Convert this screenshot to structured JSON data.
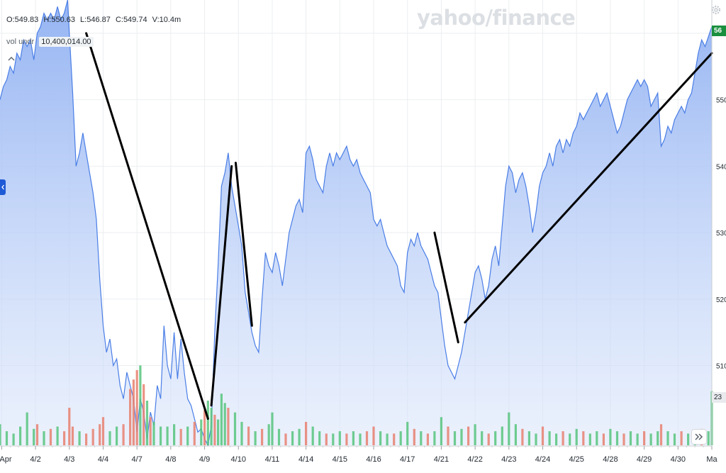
{
  "header": {
    "open": "O:549.83",
    "high": "H:550.63",
    "low": "L:546.87",
    "close": "C:549.74",
    "volume": "V:10.4m",
    "vol_label": "vol undr",
    "vol_value": "10,400,014.00",
    "logo": "yahoo/finance"
  },
  "tags": {
    "price": "56",
    "volume": "23"
  },
  "colors": {
    "area_fill": "#a9c3f5",
    "line": "#4a7ee6",
    "vol_up": "#57c47c",
    "vol_down": "#e8806e",
    "annotation": "#000000",
    "price_tag_bg": "#1a8f3e"
  },
  "icons": [
    "collapse-chevron-up-icon",
    "gear-icon",
    "side-handle-chevron-left-icon",
    "fast-forward-icon"
  ],
  "chart_data": {
    "type": "area",
    "y_ticks": [
      {
        "value": 510,
        "label": "510"
      },
      {
        "value": 520,
        "label": "520"
      },
      {
        "value": 530,
        "label": "530"
      },
      {
        "value": 540,
        "label": "540"
      },
      {
        "value": 550,
        "label": "550"
      },
      {
        "value": 560,
        "label": "560"
      }
    ],
    "ylim": [
      498,
      565
    ],
    "x_ticks": [
      {
        "value": 0,
        "label": "Apr"
      },
      {
        "value": 1,
        "label": "4/2"
      },
      {
        "value": 2,
        "label": "4/3"
      },
      {
        "value": 3,
        "label": "4/4"
      },
      {
        "value": 4,
        "label": "4/7"
      },
      {
        "value": 5,
        "label": "4/8"
      },
      {
        "value": 6,
        "label": "4/9"
      },
      {
        "value": 7,
        "label": "4/10"
      },
      {
        "value": 8,
        "label": "4/11"
      },
      {
        "value": 9,
        "label": "4/14"
      },
      {
        "value": 10,
        "label": "4/15"
      },
      {
        "value": 11,
        "label": "4/16"
      },
      {
        "value": 12,
        "label": "4/17"
      },
      {
        "value": 13,
        "label": "4/21"
      },
      {
        "value": 14,
        "label": "4/22"
      },
      {
        "value": 15,
        "label": "4/23"
      },
      {
        "value": 16,
        "label": "4/24"
      },
      {
        "value": 17,
        "label": "4/25"
      },
      {
        "value": 18,
        "label": "4/28"
      },
      {
        "value": 19,
        "label": "4/29"
      },
      {
        "value": 20,
        "label": "4/30"
      },
      {
        "value": 21,
        "label": "Ma"
      }
    ],
    "xlim": [
      -0.05,
      21
    ],
    "price_series": [
      [
        -0.05,
        550
      ],
      [
        0.05,
        552
      ],
      [
        0.15,
        553
      ],
      [
        0.25,
        555
      ],
      [
        0.35,
        554
      ],
      [
        0.45,
        557
      ],
      [
        0.55,
        556
      ],
      [
        0.65,
        559
      ],
      [
        0.75,
        558
      ],
      [
        0.85,
        559
      ],
      [
        0.95,
        556
      ],
      [
        1.05,
        560
      ],
      [
        1.15,
        561
      ],
      [
        1.25,
        563
      ],
      [
        1.35,
        562
      ],
      [
        1.45,
        563
      ],
      [
        1.55,
        562
      ],
      [
        1.65,
        564
      ],
      [
        1.75,
        562
      ],
      [
        1.85,
        563
      ],
      [
        1.95,
        565
      ],
      [
        2.0,
        560
      ],
      [
        2.1,
        551
      ],
      [
        2.2,
        540
      ],
      [
        2.3,
        542
      ],
      [
        2.4,
        545
      ],
      [
        2.5,
        542
      ],
      [
        2.6,
        539
      ],
      [
        2.7,
        536
      ],
      [
        2.8,
        532
      ],
      [
        2.9,
        523
      ],
      [
        3.0,
        516
      ],
      [
        3.1,
        512
      ],
      [
        3.2,
        514
      ],
      [
        3.3,
        510
      ],
      [
        3.4,
        511
      ],
      [
        3.5,
        507
      ],
      [
        3.6,
        505
      ],
      [
        3.7,
        509
      ],
      [
        3.8,
        507
      ],
      [
        3.9,
        505
      ],
      [
        4.0,
        500
      ],
      [
        4.1,
        505
      ],
      [
        4.2,
        503
      ],
      [
        4.3,
        499
      ],
      [
        4.4,
        503
      ],
      [
        4.5,
        501
      ],
      [
        4.6,
        507
      ],
      [
        4.7,
        505
      ],
      [
        4.8,
        516
      ],
      [
        4.9,
        510
      ],
      [
        5.0,
        508
      ],
      [
        5.1,
        515
      ],
      [
        5.2,
        508
      ],
      [
        5.3,
        514
      ],
      [
        5.4,
        509
      ],
      [
        5.5,
        505
      ],
      [
        5.6,
        504
      ],
      [
        5.7,
        502
      ],
      [
        5.8,
        500
      ],
      [
        5.9,
        500.5
      ],
      [
        6.0,
        499
      ],
      [
        6.1,
        498
      ],
      [
        6.2,
        501
      ],
      [
        6.3,
        515
      ],
      [
        6.4,
        525
      ],
      [
        6.5,
        537
      ],
      [
        6.6,
        539
      ],
      [
        6.7,
        542
      ],
      [
        6.8,
        537
      ],
      [
        6.9,
        534
      ],
      [
        7.0,
        531
      ],
      [
        7.1,
        528
      ],
      [
        7.2,
        521
      ],
      [
        7.3,
        518
      ],
      [
        7.4,
        515
      ],
      [
        7.5,
        513
      ],
      [
        7.6,
        512
      ],
      [
        7.7,
        520
      ],
      [
        7.8,
        527
      ],
      [
        7.9,
        525
      ],
      [
        8.0,
        524
      ],
      [
        8.1,
        527
      ],
      [
        8.2,
        525
      ],
      [
        8.3,
        522
      ],
      [
        8.4,
        526
      ],
      [
        8.5,
        530
      ],
      [
        8.6,
        532
      ],
      [
        8.7,
        534
      ],
      [
        8.8,
        535
      ],
      [
        8.9,
        533
      ],
      [
        9.0,
        542
      ],
      [
        9.1,
        543
      ],
      [
        9.2,
        541
      ],
      [
        9.3,
        538
      ],
      [
        9.4,
        537
      ],
      [
        9.5,
        536
      ],
      [
        9.6,
        540
      ],
      [
        9.7,
        542
      ],
      [
        9.8,
        540
      ],
      [
        9.9,
        542
      ],
      [
        10.0,
        541
      ],
      [
        10.1,
        542
      ],
      [
        10.2,
        543
      ],
      [
        10.3,
        541
      ],
      [
        10.4,
        540
      ],
      [
        10.5,
        541
      ],
      [
        10.6,
        539
      ],
      [
        10.7,
        538
      ],
      [
        10.8,
        537
      ],
      [
        10.9,
        536
      ],
      [
        11.0,
        532
      ],
      [
        11.1,
        531
      ],
      [
        11.2,
        532
      ],
      [
        11.3,
        530
      ],
      [
        11.4,
        528
      ],
      [
        11.5,
        527
      ],
      [
        11.6,
        526
      ],
      [
        11.7,
        525
      ],
      [
        11.8,
        522
      ],
      [
        11.9,
        521
      ],
      [
        12.0,
        527
      ],
      [
        12.1,
        529
      ],
      [
        12.2,
        528
      ],
      [
        12.3,
        530
      ],
      [
        12.4,
        528
      ],
      [
        12.5,
        527
      ],
      [
        12.6,
        526
      ],
      [
        12.7,
        524
      ],
      [
        12.8,
        522
      ],
      [
        12.9,
        521
      ],
      [
        13.0,
        517
      ],
      [
        13.1,
        513
      ],
      [
        13.2,
        510
      ],
      [
        13.3,
        509
      ],
      [
        13.4,
        508
      ],
      [
        13.5,
        510
      ],
      [
        13.6,
        512
      ],
      [
        13.7,
        515
      ],
      [
        13.8,
        518
      ],
      [
        13.9,
        521
      ],
      [
        14.0,
        524
      ],
      [
        14.1,
        525
      ],
      [
        14.2,
        523
      ],
      [
        14.3,
        520
      ],
      [
        14.4,
        522
      ],
      [
        14.5,
        526
      ],
      [
        14.6,
        528
      ],
      [
        14.7,
        525
      ],
      [
        14.8,
        531
      ],
      [
        14.9,
        537
      ],
      [
        15.0,
        540
      ],
      [
        15.1,
        539
      ],
      [
        15.2,
        536
      ],
      [
        15.3,
        538
      ],
      [
        15.4,
        539
      ],
      [
        15.5,
        537
      ],
      [
        15.6,
        534
      ],
      [
        15.7,
        530
      ],
      [
        15.8,
        533
      ],
      [
        15.9,
        537
      ],
      [
        16.0,
        539
      ],
      [
        16.1,
        540
      ],
      [
        16.2,
        542
      ],
      [
        16.3,
        540
      ],
      [
        16.4,
        543
      ],
      [
        16.5,
        544
      ],
      [
        16.6,
        542
      ],
      [
        16.7,
        544
      ],
      [
        16.8,
        543
      ],
      [
        16.9,
        545
      ],
      [
        17.0,
        546
      ],
      [
        17.1,
        548
      ],
      [
        17.2,
        547
      ],
      [
        17.3,
        548
      ],
      [
        17.4,
        549
      ],
      [
        17.5,
        550
      ],
      [
        17.6,
        551
      ],
      [
        17.7,
        549
      ],
      [
        17.8,
        550
      ],
      [
        17.9,
        551
      ],
      [
        18.0,
        549
      ],
      [
        18.1,
        547
      ],
      [
        18.2,
        545
      ],
      [
        18.3,
        546
      ],
      [
        18.4,
        548
      ],
      [
        18.5,
        550
      ],
      [
        18.6,
        551
      ],
      [
        18.7,
        552
      ],
      [
        18.8,
        553
      ],
      [
        18.9,
        552
      ],
      [
        19.0,
        553
      ],
      [
        19.1,
        552
      ],
      [
        19.2,
        549
      ],
      [
        19.3,
        550
      ],
      [
        19.4,
        551
      ],
      [
        19.5,
        543
      ],
      [
        19.6,
        544
      ],
      [
        19.7,
        546
      ],
      [
        19.8,
        545
      ],
      [
        19.9,
        547
      ],
      [
        20.0,
        548
      ],
      [
        20.1,
        549
      ],
      [
        20.2,
        548
      ],
      [
        20.3,
        550
      ],
      [
        20.4,
        551
      ],
      [
        20.5,
        554
      ],
      [
        20.6,
        557
      ],
      [
        20.7,
        559
      ],
      [
        20.8,
        558
      ],
      [
        21.0,
        561
      ]
    ],
    "volume_axis_max": 35,
    "volume_series": [
      [
        -0.05,
        9,
        "up"
      ],
      [
        0.15,
        6,
        "up"
      ],
      [
        0.35,
        5,
        "up"
      ],
      [
        0.55,
        8,
        "up"
      ],
      [
        0.75,
        14,
        "up"
      ],
      [
        0.95,
        7,
        "up"
      ],
      [
        1.05,
        9,
        "down"
      ],
      [
        1.25,
        6,
        "up"
      ],
      [
        1.45,
        7,
        "down"
      ],
      [
        1.65,
        8,
        "up"
      ],
      [
        1.85,
        6,
        "down"
      ],
      [
        2.0,
        16,
        "down"
      ],
      [
        2.1,
        8,
        "down"
      ],
      [
        2.3,
        6,
        "up"
      ],
      [
        2.5,
        5,
        "down"
      ],
      [
        2.7,
        7,
        "down"
      ],
      [
        2.9,
        9,
        "down"
      ],
      [
        3.0,
        12,
        "down"
      ],
      [
        3.2,
        6,
        "up"
      ],
      [
        3.4,
        8,
        "up"
      ],
      [
        3.6,
        9,
        "down"
      ],
      [
        3.8,
        24,
        "down"
      ],
      [
        3.9,
        28,
        "down"
      ],
      [
        4.0,
        32,
        "down"
      ],
      [
        4.1,
        34,
        "up"
      ],
      [
        4.2,
        26,
        "down"
      ],
      [
        4.3,
        19,
        "up"
      ],
      [
        4.4,
        12,
        "down"
      ],
      [
        4.5,
        10,
        "up"
      ],
      [
        4.7,
        8,
        "up"
      ],
      [
        4.9,
        8,
        "up"
      ],
      [
        5.1,
        9,
        "up"
      ],
      [
        5.3,
        7,
        "down"
      ],
      [
        5.5,
        8,
        "up"
      ],
      [
        5.7,
        10,
        "down"
      ],
      [
        5.9,
        11,
        "up"
      ],
      [
        6.0,
        15,
        "down"
      ],
      [
        6.1,
        19,
        "up"
      ],
      [
        6.2,
        16,
        "up"
      ],
      [
        6.3,
        13,
        "down"
      ],
      [
        6.4,
        11,
        "up"
      ],
      [
        6.5,
        22,
        "up"
      ],
      [
        6.6,
        18,
        "up"
      ],
      [
        6.7,
        16,
        "down"
      ],
      [
        6.9,
        14,
        "up"
      ],
      [
        7.1,
        10,
        "up"
      ],
      [
        7.3,
        8,
        "down"
      ],
      [
        7.5,
        6,
        "up"
      ],
      [
        7.7,
        7,
        "down"
      ],
      [
        7.9,
        9,
        "up"
      ],
      [
        8.0,
        14,
        "up"
      ],
      [
        8.2,
        7,
        "up"
      ],
      [
        8.4,
        5,
        "down"
      ],
      [
        8.6,
        6,
        "up"
      ],
      [
        8.8,
        7,
        "up"
      ],
      [
        9.0,
        10,
        "down"
      ],
      [
        9.2,
        8,
        "up"
      ],
      [
        9.4,
        6,
        "up"
      ],
      [
        9.6,
        5,
        "down"
      ],
      [
        9.8,
        5,
        "up"
      ],
      [
        10.0,
        6,
        "up"
      ],
      [
        10.2,
        5,
        "down"
      ],
      [
        10.4,
        6,
        "up"
      ],
      [
        10.6,
        5,
        "up"
      ],
      [
        10.8,
        6,
        "down"
      ],
      [
        11.0,
        8,
        "down"
      ],
      [
        11.2,
        6,
        "up"
      ],
      [
        11.4,
        5,
        "up"
      ],
      [
        11.6,
        5,
        "down"
      ],
      [
        11.8,
        6,
        "up"
      ],
      [
        12.0,
        10,
        "up"
      ],
      [
        12.2,
        7,
        "down"
      ],
      [
        12.4,
        6,
        "up"
      ],
      [
        12.6,
        5,
        "down"
      ],
      [
        12.8,
        6,
        "up"
      ],
      [
        13.0,
        12,
        "up"
      ],
      [
        13.2,
        8,
        "down"
      ],
      [
        13.4,
        6,
        "up"
      ],
      [
        13.6,
        7,
        "up"
      ],
      [
        13.8,
        8,
        "down"
      ],
      [
        14.0,
        9,
        "up"
      ],
      [
        14.2,
        6,
        "up"
      ],
      [
        14.4,
        5,
        "down"
      ],
      [
        14.6,
        6,
        "up"
      ],
      [
        14.8,
        8,
        "up"
      ],
      [
        15.0,
        14,
        "up"
      ],
      [
        15.2,
        9,
        "up"
      ],
      [
        15.4,
        7,
        "down"
      ],
      [
        15.6,
        6,
        "up"
      ],
      [
        15.8,
        5,
        "up"
      ],
      [
        16.0,
        8,
        "down"
      ],
      [
        16.2,
        6,
        "up"
      ],
      [
        16.4,
        5,
        "up"
      ],
      [
        16.6,
        6,
        "down"
      ],
      [
        16.8,
        5,
        "up"
      ],
      [
        17.0,
        7,
        "up"
      ],
      [
        17.2,
        6,
        "down"
      ],
      [
        17.4,
        5,
        "up"
      ],
      [
        17.6,
        6,
        "up"
      ],
      [
        17.8,
        5,
        "down"
      ],
      [
        18.0,
        7,
        "up"
      ],
      [
        18.2,
        6,
        "up"
      ],
      [
        18.4,
        5,
        "down"
      ],
      [
        18.6,
        6,
        "up"
      ],
      [
        18.8,
        5,
        "up"
      ],
      [
        19.0,
        6,
        "down"
      ],
      [
        19.2,
        5,
        "up"
      ],
      [
        19.4,
        6,
        "up"
      ],
      [
        19.5,
        9,
        "down"
      ],
      [
        19.7,
        6,
        "up"
      ],
      [
        19.9,
        5,
        "up"
      ],
      [
        20.1,
        6,
        "down"
      ],
      [
        20.3,
        5,
        "up"
      ],
      [
        20.5,
        6,
        "up"
      ],
      [
        20.7,
        7,
        "down"
      ],
      [
        20.9,
        6,
        "up"
      ],
      [
        21.0,
        23,
        "up"
      ]
    ],
    "annotations": [
      {
        "from": [
          2.5,
          560
        ],
        "to": [
          6.1,
          502
        ]
      },
      {
        "from": [
          6.2,
          504
        ],
        "to": [
          6.8,
          540
        ]
      },
      {
        "from": [
          6.92,
          540.5
        ],
        "to": [
          7.4,
          516
        ]
      },
      {
        "from": [
          12.8,
          530
        ],
        "to": [
          13.5,
          513.5
        ]
      },
      {
        "from": [
          13.7,
          516.5
        ],
        "to": [
          21.0,
          557
        ]
      }
    ]
  }
}
